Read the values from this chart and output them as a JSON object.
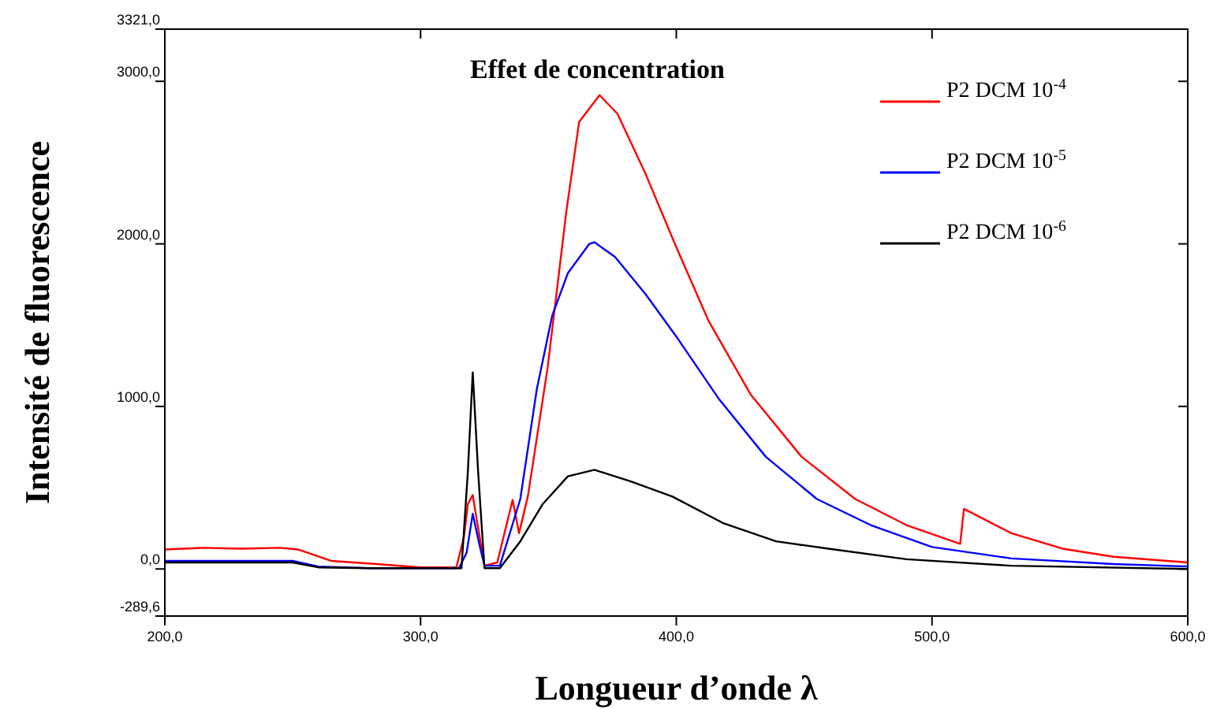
{
  "chart_data": {
    "type": "line",
    "title": "Effet de concentration",
    "xlabel": "Longueur d’onde λ",
    "ylabel": "Intensité de fluorescence",
    "xlim": [
      200,
      600
    ],
    "ylim": [
      -289.6,
      3321
    ],
    "xticks": [
      {
        "value": 200,
        "label": "200,0"
      },
      {
        "value": 300,
        "label": "300,0"
      },
      {
        "value": 400,
        "label": "400,0"
      },
      {
        "value": 500,
        "label": "500,0"
      },
      {
        "value": 600,
        "label": "600,0"
      }
    ],
    "yticks": [
      {
        "value": -289.6,
        "label": "-289,6"
      },
      {
        "value": 0,
        "label": "0,0"
      },
      {
        "value": 1000,
        "label": "1000,0"
      },
      {
        "value": 2000,
        "label": "2000,0"
      },
      {
        "value": 3000,
        "label": "3000,0"
      },
      {
        "value": 3321,
        "label": "3321,0"
      }
    ],
    "grid": false,
    "legend": "top right",
    "marker": "none",
    "line_style": "solid",
    "series": [
      {
        "name": "P2 DCM 10$^{-4}$",
        "color": "#ff0000",
        "x": [
          200,
          215,
          230,
          245,
          252,
          265,
          283,
          300,
          314,
          317,
          318.5,
          320.4,
          322,
          325,
          330,
          336,
          338.5,
          342,
          349.7,
          357,
          362,
          370,
          377,
          388,
          400,
          412.5,
          429,
          449,
          470,
          490,
          511,
          512.5,
          531,
          551,
          571,
          600
        ],
        "values": [
          120,
          130,
          125,
          130,
          120,
          50,
          30,
          10,
          10,
          200,
          400,
          455,
          300,
          20,
          40,
          425,
          220,
          450,
          1240,
          2200,
          2750,
          2915,
          2800,
          2430,
          1980,
          1530,
          1075,
          690,
          430,
          270,
          155,
          370,
          220,
          125,
          75,
          40
        ]
      },
      {
        "name": "P2 DCM 10$^{-5}$",
        "color": "#0000ff",
        "x": [
          200,
          220,
          240,
          250,
          260,
          280,
          300,
          315,
          318,
          320.4,
          323,
          325,
          331,
          339,
          345.5,
          351.5,
          357.6,
          366,
          368,
          376,
          388,
          400,
          416.7,
          435,
          455,
          476,
          500,
          531,
          571,
          600
        ],
        "values": [
          50,
          50,
          50,
          50,
          15,
          5,
          5,
          5,
          100,
          340,
          150,
          20,
          20,
          430,
          1110,
          1560,
          1820,
          2000,
          2010,
          1920,
          1690,
          1430,
          1045,
          690,
          430,
          270,
          135,
          65,
          30,
          15
        ]
      },
      {
        "name": "P2 DCM 10$^{-6}$",
        "color": "#000000",
        "x": [
          200,
          220,
          240,
          250,
          260,
          280,
          300,
          316,
          318.5,
          320.4,
          322.5,
          325,
          331,
          339,
          347.8,
          357.6,
          368,
          382,
          398.5,
          418.6,
          439,
          459.5,
          490,
          531,
          600
        ],
        "values": [
          40,
          40,
          40,
          40,
          10,
          5,
          5,
          5,
          600,
          1210,
          600,
          5,
          5,
          170,
          400,
          570,
          610,
          540,
          445,
          280,
          170,
          125,
          60,
          20,
          0
        ]
      }
    ]
  }
}
